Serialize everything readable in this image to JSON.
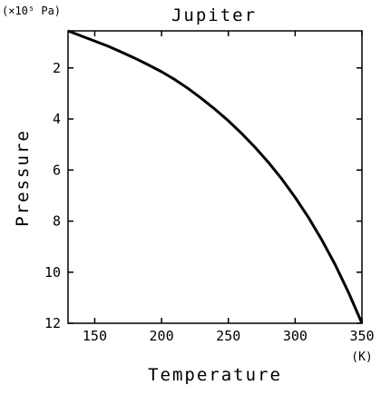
{
  "chart_data": {
    "type": "line",
    "title": "Jupiter",
    "xlabel": "Temperature",
    "ylabel": "Pressure",
    "x_unit": "(K)",
    "y_unit": "(×10⁵ Pa)",
    "xlim": [
      130,
      350
    ],
    "ylim": [
      12,
      0.55
    ],
    "y_inverted": true,
    "grid": false,
    "xticks": [
      150,
      200,
      250,
      300,
      350
    ],
    "yticks": [
      2,
      4,
      6,
      8,
      10,
      12
    ],
    "series": [
      {
        "x": [
          130,
          140,
          150,
          160,
          170,
          180,
          190,
          200,
          210,
          220,
          230,
          240,
          250,
          260,
          270,
          280,
          290,
          300,
          310,
          320,
          330,
          340,
          350
        ],
        "values": [
          0.55,
          0.75,
          0.95,
          1.15,
          1.38,
          1.62,
          1.88,
          2.15,
          2.46,
          2.81,
          3.2,
          3.62,
          4.07,
          4.57,
          5.11,
          5.7,
          6.35,
          7.07,
          7.86,
          8.74,
          9.71,
          10.8,
          12.0
        ]
      }
    ]
  }
}
